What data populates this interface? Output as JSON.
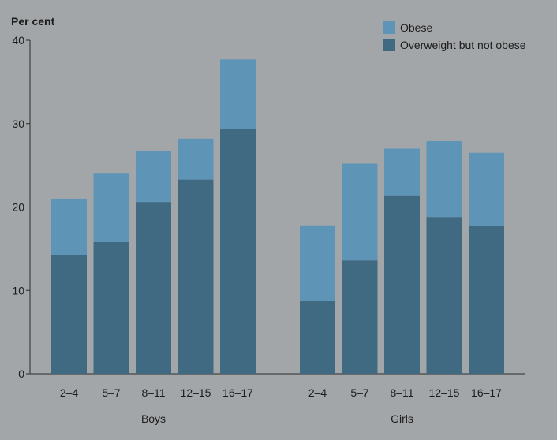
{
  "chart_data": {
    "type": "bar",
    "stacked": true,
    "ylabel": "Per cent",
    "ylim": [
      0,
      40
    ],
    "yticks": [
      0,
      10,
      20,
      30,
      40
    ],
    "grid": false,
    "legend_position": "top-right",
    "groups": [
      {
        "label": "Boys",
        "categories": [
          "2–4",
          "5–7",
          "8–11",
          "12–15",
          "16–17"
        ]
      },
      {
        "label": "Girls",
        "categories": [
          "2–4",
          "5–7",
          "8–11",
          "12–15",
          "16–17"
        ]
      }
    ],
    "series": [
      {
        "name": "Overweight but not obese",
        "color": "#3f6a82",
        "values": [
          14.2,
          15.8,
          20.6,
          23.3,
          29.4,
          8.7,
          13.6,
          21.4,
          18.8,
          17.7
        ]
      },
      {
        "name": "Obese",
        "color": "#5e95b6",
        "values": [
          6.8,
          8.2,
          6.1,
          4.9,
          8.3,
          9.1,
          11.6,
          5.6,
          9.1,
          8.8
        ]
      }
    ],
    "legend": [
      {
        "label": "Obese",
        "color": "#5e95b6"
      },
      {
        "label": "Overweight but not obese",
        "color": "#3f6a82"
      }
    ]
  }
}
